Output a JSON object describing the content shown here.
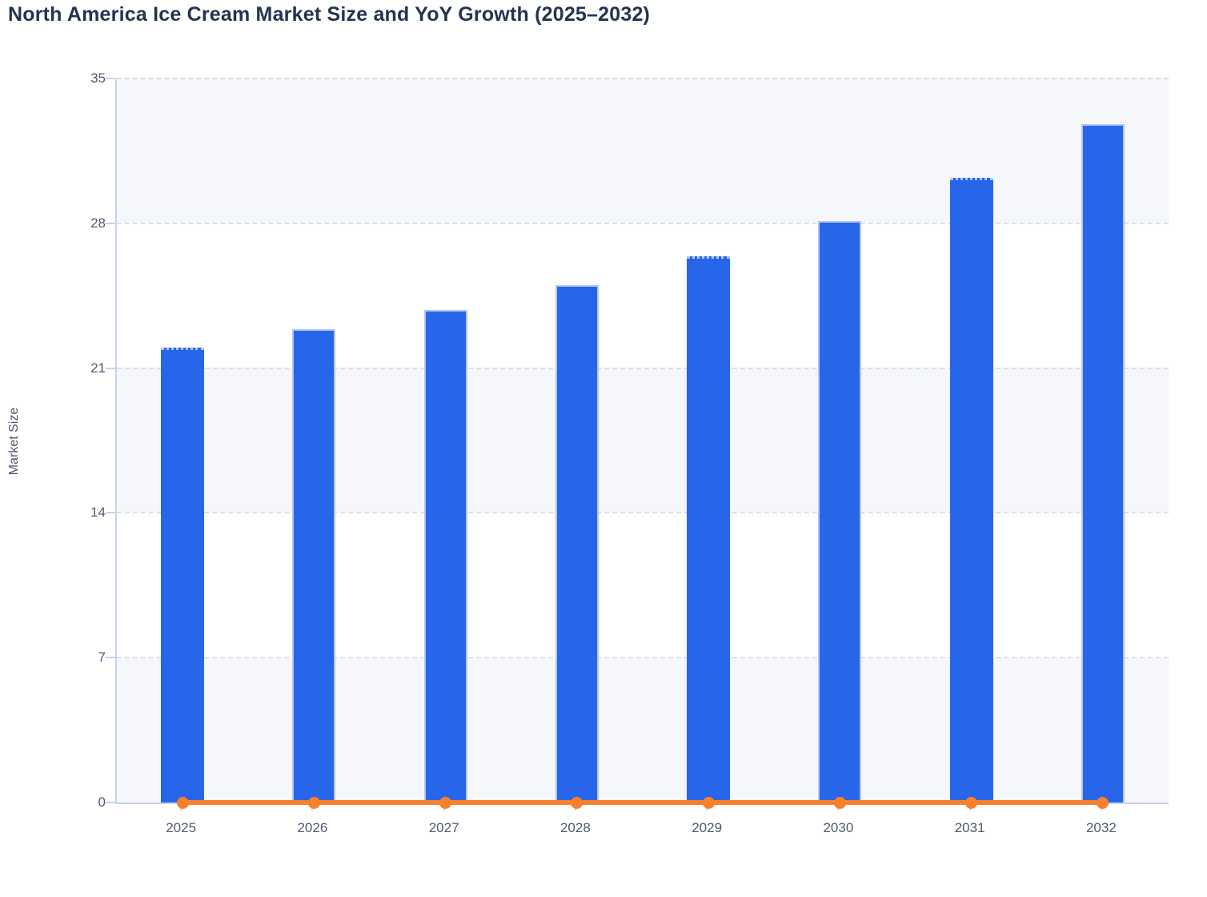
{
  "title": "North America Ice Cream Market Size and YoY Growth (2025–2032)",
  "chart_data": {
    "type": "bar",
    "title": "North America Ice Cream Market Size and YoY Growth (2025–2032)",
    "xlabel": "",
    "ylabel": "Market Size",
    "categories": [
      "2025",
      "2026",
      "2027",
      "2028",
      "2029",
      "2030",
      "2031",
      "2032"
    ],
    "series": [
      {
        "name": "Market Size",
        "chart_type": "bar",
        "values": [
          22.0,
          22.9,
          23.8,
          25.0,
          26.4,
          28.1,
          30.2,
          32.8
        ]
      },
      {
        "name": "YoY Growth",
        "chart_type": "line",
        "marker": "circle",
        "values": [
          0,
          0,
          0,
          0,
          0,
          0,
          0,
          0
        ]
      }
    ],
    "ylim": [
      0,
      35
    ],
    "yticks": [
      0,
      7,
      14,
      21,
      28,
      35
    ],
    "grid": "horizontal-dashed",
    "legend_position": "none",
    "plot_background": "alternating-horizontal-bands"
  },
  "colors": {
    "bar_fill": "#2765E9",
    "bar_border": "#B2C6F4",
    "line": "#F8802C",
    "marker": "#F8802C",
    "title_text": "#24334F",
    "axis_label_text": "#4E5A6E",
    "y_axis_title_text": "#4B5566",
    "gridline": "#DCDFE8",
    "axis_line": "#C8D2EE",
    "band": "#F5F7FA"
  }
}
